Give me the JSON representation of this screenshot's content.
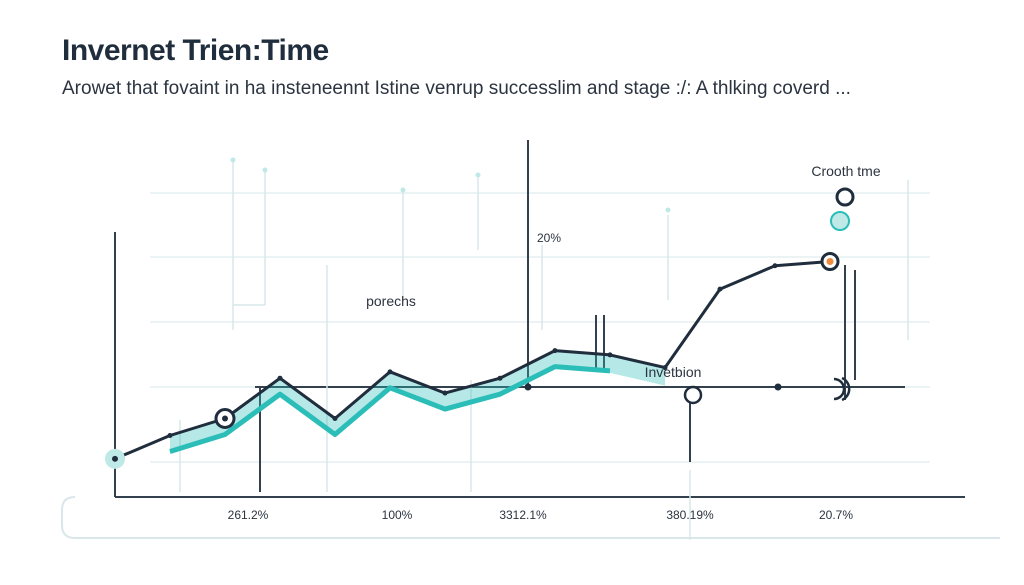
{
  "title": "Invernet Trien:Time",
  "subtitle": "Arowet that fovaint in ha insteneennt Istine venrup successlim and stage :/: A thlking coverd ...",
  "colors": {
    "line": "#1f2d3d",
    "accent": "#2bbdb7",
    "accent_light": "#bfe9e7",
    "grid": "#d9e7ea",
    "marker_orange": "#f08a3c"
  },
  "chart_data": {
    "type": "line",
    "x": [
      0,
      1,
      2,
      3,
      4,
      5,
      6,
      7,
      8,
      9,
      10,
      11,
      12,
      13
    ],
    "y": [
      18,
      29,
      37,
      56,
      37,
      59,
      49,
      56,
      69,
      67,
      61,
      98,
      109,
      111
    ],
    "ylim": [
      0,
      140
    ],
    "xlim": [
      0,
      15
    ],
    "x_tick_labels": [
      "261.2%",
      "100%",
      "3312.1%",
      "380.19%",
      "20.7%"
    ],
    "annotations": [
      {
        "text": "porechs"
      },
      {
        "text": "20%"
      },
      {
        "text": "Invetbion"
      },
      {
        "text": "Crooth tme"
      }
    ],
    "grid": true
  }
}
